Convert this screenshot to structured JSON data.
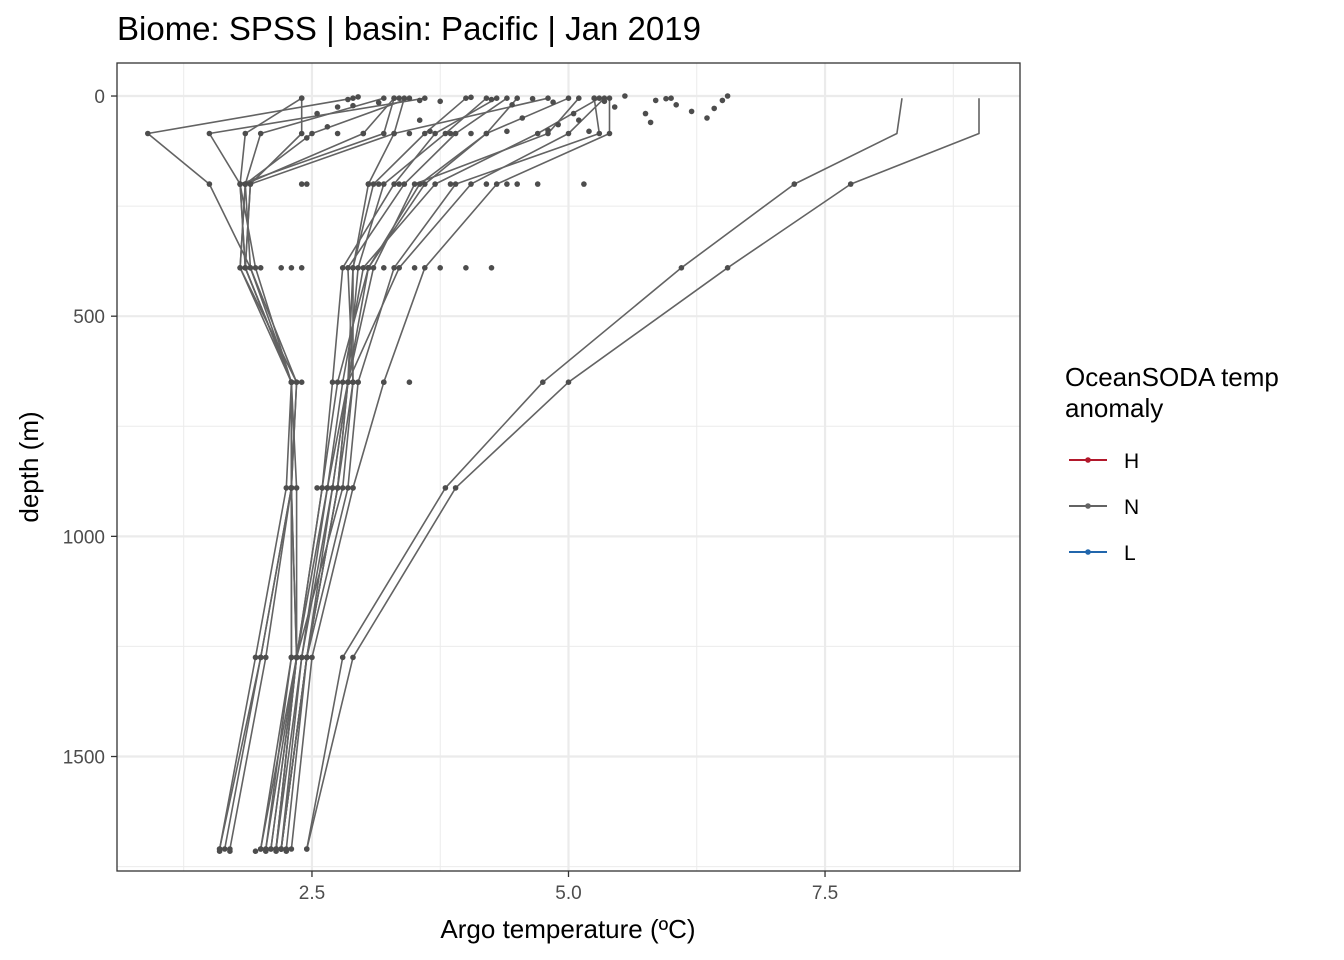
{
  "chart_data": {
    "type": "line",
    "title": "Biome: SPSS | basin: Pacific  | Jan 2019",
    "xlabel": "Argo temperature (ºC)",
    "ylabel": "depth (m)",
    "xlim": [
      0.6,
      9.4
    ],
    "ylim": [
      1760,
      -75
    ],
    "y_reversed": true,
    "xticks": [
      2.5,
      5.0,
      7.5
    ],
    "xtick_labels": [
      "2.5",
      "5.0",
      "7.5"
    ],
    "yticks": [
      0,
      500,
      1000,
      1500
    ],
    "ytick_labels": [
      "0",
      "500",
      "1000",
      "1500"
    ],
    "grid": true,
    "legend": {
      "title_lines": [
        "OceanSODA temp",
        "anomaly"
      ],
      "position": "right",
      "entries": [
        {
          "label": "H",
          "color": "#b2182b"
        },
        {
          "label": "N",
          "color": "#636363"
        },
        {
          "label": "L",
          "color": "#2166ac"
        }
      ]
    },
    "line_color": "#636363",
    "point_color": "#4d4d4d",
    "depths": [
      5,
      85,
      200,
      390,
      650,
      890,
      1275,
      1710
    ],
    "series": [
      {
        "values": [
          2.4,
          2.4,
          1.9,
          1.85,
          2.3,
          2.3,
          2.0,
          1.65
        ]
      },
      {
        "values": [
          3.2,
          2.0,
          1.85,
          1.8,
          2.3,
          2.3,
          2.0,
          1.6
        ]
      },
      {
        "values": [
          2.9,
          0.9,
          1.5,
          1.9,
          2.35,
          2.3,
          2.05,
          1.7
        ]
      },
      {
        "values": [
          3.6,
          1.5,
          1.8,
          1.85,
          2.3,
          2.25,
          1.95,
          1.6
        ]
      },
      {
        "values": [
          3.3,
          3.2,
          1.8,
          1.85,
          2.3,
          2.3,
          2.35,
          2.05
        ]
      },
      {
        "values": [
          3.3,
          3.0,
          1.85,
          1.9,
          2.3,
          2.3,
          2.3,
          2.0
        ]
      },
      {
        "values": [
          2.4,
          1.85,
          1.8,
          1.95,
          2.3,
          2.3,
          2.35,
          2.1
        ]
      },
      {
        "values": [
          3.45,
          2.5,
          1.85,
          1.8,
          2.35,
          2.3,
          2.3,
          2.05
        ]
      },
      {
        "values": [
          3.4,
          3.3,
          1.9,
          1.85,
          2.3,
          2.35,
          2.35,
          2.0
        ]
      },
      {
        "values": [
          4.8,
          3.3,
          3.05,
          2.9,
          2.9,
          2.8,
          2.35,
          2.15
        ]
      },
      {
        "values": [
          5.0,
          4.2,
          3.6,
          3.05,
          2.75,
          2.6,
          2.35,
          2.1
        ]
      },
      {
        "values": [
          4.4,
          3.9,
          3.4,
          2.85,
          2.9,
          2.75,
          2.45,
          2.25
        ]
      },
      {
        "values": [
          4.2,
          3.8,
          3.2,
          2.95,
          2.85,
          2.7,
          2.45,
          2.2
        ]
      },
      {
        "values": [
          4.0,
          3.6,
          3.1,
          2.9,
          2.85,
          2.65,
          2.35,
          2.15
        ]
      },
      {
        "values": [
          4.5,
          4.2,
          3.55,
          3.05,
          2.85,
          2.75,
          2.45,
          2.2
        ]
      },
      {
        "values": [
          5.3,
          4.7,
          3.7,
          3.0,
          2.8,
          2.65,
          2.4,
          2.15
        ]
      },
      {
        "values": [
          5.4,
          5.4,
          4.3,
          3.6,
          3.2,
          2.9,
          2.5,
          2.3
        ]
      },
      {
        "values": [
          5.25,
          5.3,
          3.9,
          3.3,
          2.95,
          2.85,
          2.45,
          2.2
        ]
      },
      {
        "values": [
          5.1,
          4.8,
          3.5,
          3.1,
          2.85,
          2.7,
          2.4,
          2.2
        ]
      },
      {
        "values": [
          5.35,
          5.0,
          4.05,
          3.35,
          2.85,
          2.75,
          2.45,
          2.2
        ]
      },
      {
        "values": [
          4.3,
          3.7,
          3.3,
          2.8,
          2.7,
          2.6,
          2.35,
          2.15
        ]
      },
      {
        "values": [
          8.25,
          8.2,
          7.2,
          6.1,
          4.75,
          3.8,
          2.8,
          2.45
        ]
      },
      {
        "values": [
          9.0,
          9.0,
          7.75,
          6.55,
          5.0,
          3.9,
          2.9,
          2.45
        ]
      }
    ],
    "extra_points": [
      [
        2.55,
        40
      ],
      [
        2.75,
        25
      ],
      [
        2.9,
        22
      ],
      [
        2.85,
        8
      ],
      [
        2.95,
        2
      ],
      [
        3.15,
        15
      ],
      [
        3.35,
        5
      ],
      [
        3.55,
        10
      ],
      [
        3.75,
        12
      ],
      [
        4.05,
        3
      ],
      [
        4.25,
        8
      ],
      [
        4.45,
        20
      ],
      [
        4.65,
        6
      ],
      [
        4.85,
        14
      ],
      [
        5.05,
        40
      ],
      [
        5.1,
        55
      ],
      [
        5.25,
        5
      ],
      [
        5.35,
        12
      ],
      [
        5.45,
        25
      ],
      [
        5.55,
        0
      ],
      [
        5.75,
        40
      ],
      [
        5.85,
        10
      ],
      [
        5.95,
        6
      ],
      [
        5.8,
        60
      ],
      [
        6.05,
        20
      ],
      [
        6.2,
        35
      ],
      [
        6.35,
        50
      ],
      [
        6.5,
        10
      ],
      [
        6.55,
        0
      ],
      [
        6.42,
        28
      ],
      [
        6.0,
        5
      ],
      [
        3.0,
        85
      ],
      [
        3.45,
        85
      ],
      [
        3.85,
        85
      ],
      [
        4.05,
        85
      ],
      [
        4.4,
        80
      ],
      [
        4.8,
        78
      ],
      [
        5.2,
        80
      ],
      [
        3.65,
        80
      ],
      [
        2.65,
        70
      ],
      [
        3.55,
        55
      ],
      [
        4.55,
        50
      ],
      [
        4.9,
        65
      ],
      [
        2.45,
        95
      ],
      [
        2.75,
        85
      ],
      [
        2.45,
        200
      ],
      [
        2.4,
        200
      ],
      [
        3.05,
        200
      ],
      [
        3.15,
        200
      ],
      [
        3.35,
        200
      ],
      [
        4.4,
        200
      ],
      [
        4.5,
        200
      ],
      [
        4.7,
        200
      ],
      [
        5.15,
        200
      ],
      [
        3.85,
        200
      ],
      [
        4.2,
        200
      ],
      [
        2.0,
        390
      ],
      [
        2.2,
        390
      ],
      [
        2.4,
        390
      ],
      [
        3.05,
        390
      ],
      [
        3.2,
        390
      ],
      [
        3.5,
        390
      ],
      [
        3.75,
        390
      ],
      [
        4.0,
        390
      ],
      [
        4.25,
        390
      ],
      [
        2.3,
        390
      ],
      [
        2.4,
        650
      ],
      [
        3.45,
        650
      ],
      [
        3.2,
        650
      ],
      [
        2.85,
        650
      ],
      [
        2.95,
        650
      ],
      [
        2.3,
        890
      ],
      [
        2.55,
        890
      ],
      [
        2.9,
        890
      ],
      [
        2.65,
        890
      ],
      [
        2.0,
        1275
      ],
      [
        2.4,
        1275
      ],
      [
        2.3,
        1275
      ],
      [
        1.6,
        1715
      ],
      [
        1.7,
        1715
      ],
      [
        1.95,
        1715
      ],
      [
        2.05,
        1715
      ],
      [
        2.15,
        1715
      ],
      [
        2.25,
        1715
      ]
    ]
  }
}
